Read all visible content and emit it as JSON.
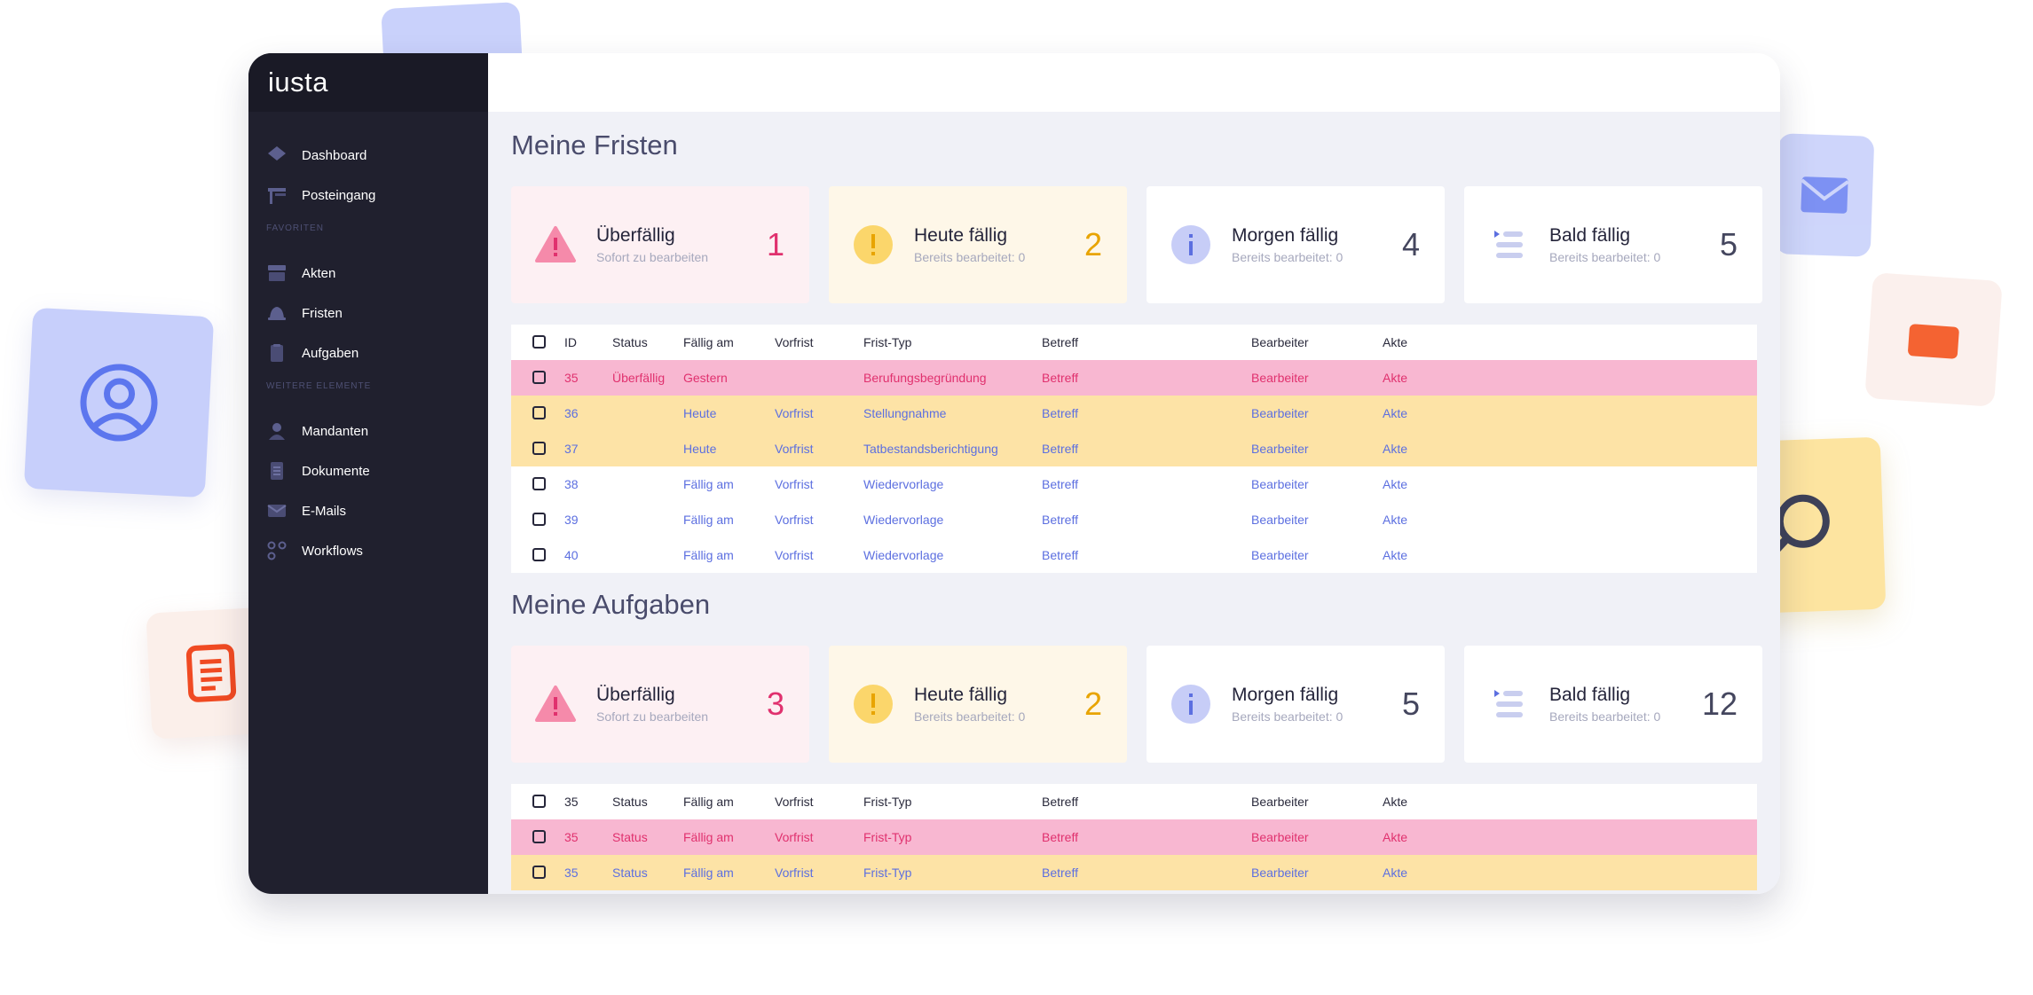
{
  "app": {
    "logo": "iusta"
  },
  "sidebar": {
    "items": [
      {
        "label": "Dashboard",
        "icon": "diamond-icon"
      },
      {
        "label": "Posteingang",
        "icon": "inbox-icon"
      }
    ],
    "favorites_label": "FAVORITEN",
    "favorites": [
      {
        "label": "Akten",
        "icon": "archive-icon"
      },
      {
        "label": "Fristen",
        "icon": "bell-icon"
      },
      {
        "label": "Aufgaben",
        "icon": "clipboard-icon"
      }
    ],
    "more_label": "WEITERE ELEMENTE",
    "more": [
      {
        "label": "Mandanten",
        "icon": "person-icon"
      },
      {
        "label": "Dokumente",
        "icon": "document-icon"
      },
      {
        "label": "E-Mails",
        "icon": "mail-icon"
      },
      {
        "label": "Workflows",
        "icon": "workflow-icon"
      }
    ]
  },
  "fristen": {
    "title": "Meine Fristen",
    "cards": [
      {
        "title": "Überfällig",
        "sub": "Sofort zu bearbeiten",
        "count": "1",
        "color": "#e0316e"
      },
      {
        "title": "Heute fällig",
        "sub": "Bereits bearbeitet: 0",
        "count": "2",
        "color": "#e8a400"
      },
      {
        "title": "Morgen fällig",
        "sub": "Bereits bearbeitet: 0",
        "count": "4",
        "color": "#44465e"
      },
      {
        "title": "Bald fällig",
        "sub": "Bereits bearbeitet: 0",
        "count": "5",
        "color": "#44465e"
      }
    ],
    "headers": [
      "ID",
      "Status",
      "Fällig am",
      "Vorfrist",
      "Frist-Typ",
      "Betreff",
      "Bearbeiter",
      "Akte"
    ],
    "rows": [
      {
        "id": "35",
        "status": "Überfällig",
        "faellig": "Gestern",
        "vorfrist": "",
        "typ": "Berufungsbegründung",
        "betreff": "Betreff",
        "bearbeiter": "Bearbeiter",
        "akte": "Akte"
      },
      {
        "id": "36",
        "status": "",
        "faellig": "Heute",
        "vorfrist": "Vorfrist",
        "typ": "Stellungnahme",
        "betreff": "Betreff",
        "bearbeiter": "Bearbeiter",
        "akte": "Akte"
      },
      {
        "id": "37",
        "status": "",
        "faellig": "Heute",
        "vorfrist": "Vorfrist",
        "typ": "Tatbestandsberichtigung",
        "betreff": "Betreff",
        "bearbeiter": "Bearbeiter",
        "akte": "Akte"
      },
      {
        "id": "38",
        "status": "",
        "faellig": "Fällig am",
        "vorfrist": "Vorfrist",
        "typ": "Wiedervorlage",
        "betreff": "Betreff",
        "bearbeiter": "Bearbeiter",
        "akte": "Akte"
      },
      {
        "id": "39",
        "status": "",
        "faellig": "Fällig am",
        "vorfrist": "Vorfrist",
        "typ": "Wiedervorlage",
        "betreff": "Betreff",
        "bearbeiter": "Bearbeiter",
        "akte": "Akte"
      },
      {
        "id": "40",
        "status": "",
        "faellig": "Fällig am",
        "vorfrist": "Vorfrist",
        "typ": "Wiedervorlage",
        "betreff": "Betreff",
        "bearbeiter": "Bearbeiter",
        "akte": "Akte"
      }
    ]
  },
  "aufgaben": {
    "title": "Meine Aufgaben",
    "cards": [
      {
        "title": "Überfällig",
        "sub": "Sofort zu bearbeiten",
        "count": "3",
        "color": "#e0316e"
      },
      {
        "title": "Heute fällig",
        "sub": "Bereits bearbeitet: 0",
        "count": "2",
        "color": "#e8a400"
      },
      {
        "title": "Morgen fällig",
        "sub": "Bereits bearbeitet: 0",
        "count": "5",
        "color": "#44465e"
      },
      {
        "title": "Bald fällig",
        "sub": "Bereits bearbeitet: 0",
        "count": "12",
        "color": "#44465e"
      }
    ],
    "headers": [
      "35",
      "Status",
      "Fällig am",
      "Vorfrist",
      "Frist-Typ",
      "Betreff",
      "Bearbeiter",
      "Akte"
    ],
    "rows": [
      {
        "id": "35",
        "status": "Status",
        "faellig": "Fällig am",
        "vorfrist": "Vorfrist",
        "typ": "Frist-Typ",
        "betreff": "Betreff",
        "bearbeiter": "Bearbeiter",
        "akte": "Akte"
      },
      {
        "id": "35",
        "status": "Status",
        "faellig": "Fällig am",
        "vorfrist": "Vorfrist",
        "typ": "Frist-Typ",
        "betreff": "Betreff",
        "bearbeiter": "Bearbeiter",
        "akte": "Akte"
      }
    ]
  },
  "colors": {
    "overdue": "#e0316e",
    "today": "#e8a400",
    "link": "#5c6fe0",
    "sidebar": "#20202e",
    "accent_icon": "#c9ceef"
  }
}
